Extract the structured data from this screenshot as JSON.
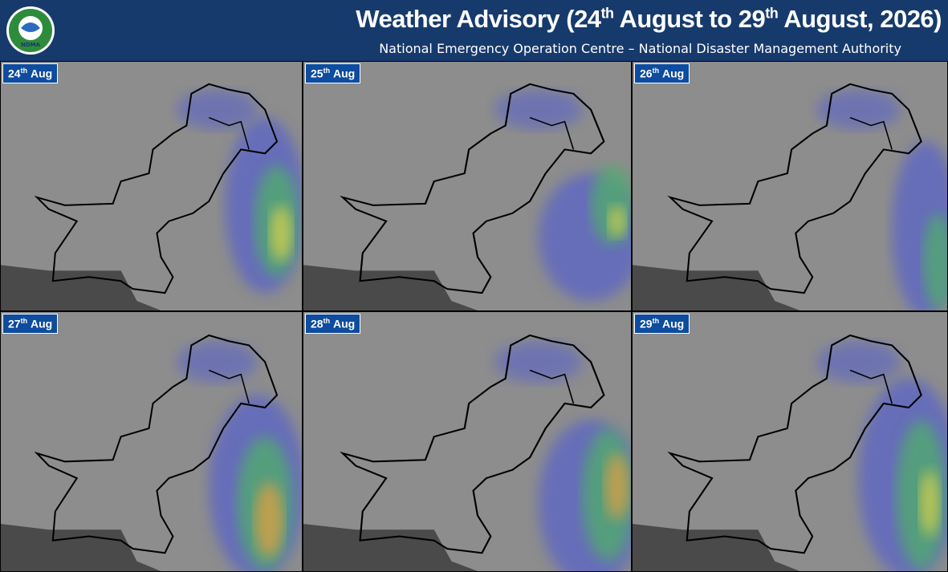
{
  "header": {
    "title_parts": [
      "Weather Advisory (24",
      "th",
      " August to 29",
      "th",
      " August, 2026)"
    ],
    "subtitle": "National Emergency Operation Centre – National Disaster Management Authority",
    "logo_text": "NDMA"
  },
  "panels": [
    {
      "day": "24",
      "suffix": "th",
      "month": "Aug"
    },
    {
      "day": "25",
      "suffix": "th",
      "month": "Aug"
    },
    {
      "day": "26",
      "suffix": "th",
      "month": "Aug"
    },
    {
      "day": "27",
      "suffix": "th",
      "month": "Aug"
    },
    {
      "day": "28",
      "suffix": "th",
      "month": "Aug"
    },
    {
      "day": "29",
      "suffix": "th",
      "month": "Aug"
    }
  ]
}
